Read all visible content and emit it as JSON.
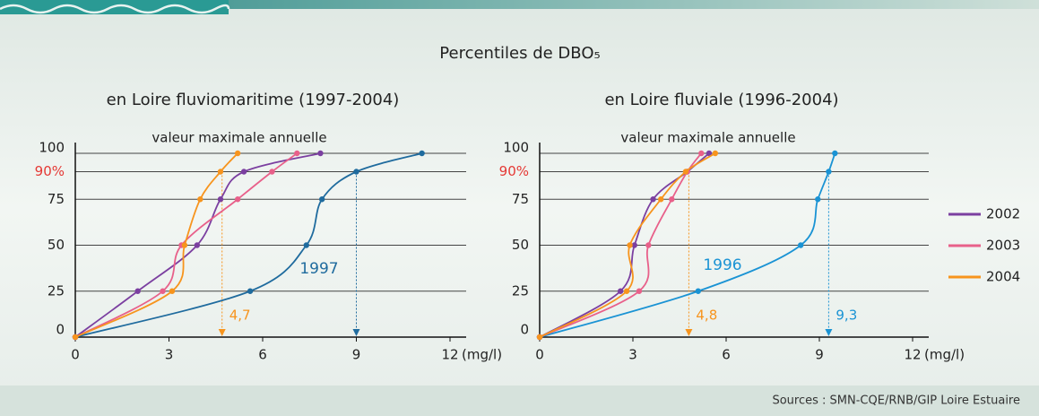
{
  "title": "Percentiles de DBO₅",
  "sources": "Sources : SMN-CQE/RNB/GIP Loire Estuaire",
  "chart_data": [
    {
      "type": "line",
      "title": "en Loire fluviomaritime (1997-2004)",
      "note": "valeur maximale annuelle",
      "x_label": "(mg/l)",
      "xlim": [
        0,
        12
      ],
      "xticks": [
        0,
        3,
        6,
        9,
        12
      ],
      "ylim": [
        0,
        100
      ],
      "yticks": [
        0,
        25,
        50,
        75,
        {
          "value": 90,
          "label": "90%"
        },
        100
      ],
      "y": [
        0,
        25,
        50,
        75,
        90,
        100
      ],
      "series": [
        {
          "name": "1997",
          "color": "#1f6b9e",
          "x": [
            0,
            5.6,
            7.4,
            7.9,
            9.0,
            11.1
          ]
        },
        {
          "color": "#7b3fa0",
          "x": [
            0,
            2.0,
            3.9,
            4.65,
            5.4,
            7.85
          ]
        },
        {
          "color": "#e8608a",
          "x": [
            0,
            2.8,
            3.4,
            5.2,
            6.3,
            7.1
          ]
        },
        {
          "color": "#f7941d",
          "x": [
            0,
            3.1,
            3.5,
            4.0,
            4.65,
            5.2
          ]
        }
      ],
      "markers": [
        {
          "value": 4.7,
          "label": "4,7",
          "color": "#f7941d"
        },
        {
          "value": 9.0,
          "color": "#1f6b9e"
        }
      ]
    },
    {
      "type": "line",
      "title": "en Loire fluviale (1996-2004)",
      "note": "valeur maximale annuelle",
      "x_label": "(mg/l)",
      "xlim": [
        0,
        12
      ],
      "xticks": [
        0,
        3,
        6,
        9,
        12
      ],
      "ylim": [
        0,
        100
      ],
      "yticks": [
        0,
        25,
        50,
        75,
        {
          "value": 90,
          "label": "90%"
        },
        100
      ],
      "y": [
        0,
        25,
        50,
        75,
        90,
        100
      ],
      "series": [
        {
          "name": "1996",
          "color": "#1a93d4",
          "x": [
            0,
            5.1,
            8.4,
            8.95,
            9.3,
            9.5
          ]
        },
        {
          "name": "2002",
          "color": "#7b3fa0",
          "x": [
            0,
            2.6,
            3.05,
            3.65,
            4.75,
            5.45
          ]
        },
        {
          "name": "2003",
          "color": "#e8608a",
          "x": [
            0,
            3.2,
            3.5,
            4.25,
            4.75,
            5.2
          ]
        },
        {
          "name": "2004",
          "color": "#f7941d",
          "x": [
            0,
            2.8,
            2.9,
            3.9,
            4.7,
            5.65
          ]
        }
      ],
      "markers": [
        {
          "value": 4.8,
          "label": "4,8",
          "color": "#f7941d"
        },
        {
          "value": 9.3,
          "label": "9,3",
          "color": "#1a93d4"
        }
      ]
    }
  ]
}
